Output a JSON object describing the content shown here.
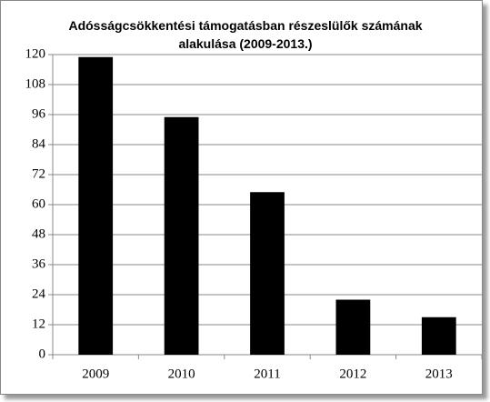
{
  "chart_data": {
    "type": "bar",
    "title": "Adósságcsökkentési támogatásban részeslülők számának alakulása (2009-2013.)",
    "categories": [
      "2009",
      "2010",
      "2011",
      "2012",
      "2013"
    ],
    "values": [
      119,
      95,
      65,
      22,
      15
    ],
    "color": "#000000",
    "ylim": [
      0,
      120
    ],
    "yticks": [
      0,
      12,
      24,
      36,
      48,
      60,
      72,
      84,
      96,
      108,
      120
    ],
    "grid": true
  }
}
